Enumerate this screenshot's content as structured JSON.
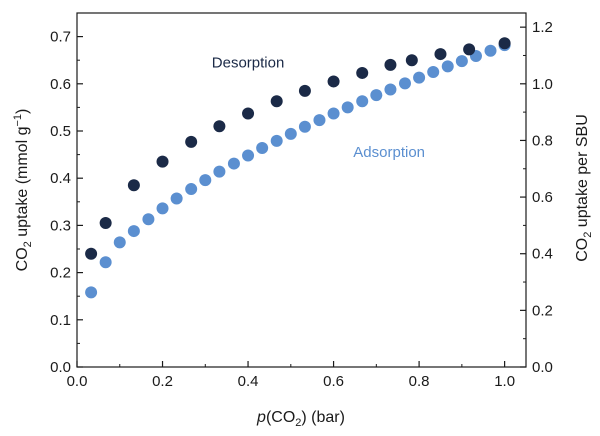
{
  "chart_data": {
    "type": "scatter",
    "xlabel": {
      "italic": "p",
      "pre": "(CO",
      "sub": "2",
      "post": ") (bar)"
    },
    "ylabel_left": {
      "pre": "CO",
      "sub": "2",
      "mid": " uptake (mmol g",
      "sup": "−1",
      "post": ")"
    },
    "ylabel_right": {
      "pre": "CO",
      "sub": "2",
      "post": " uptake per SBU"
    },
    "xlim": [
      0.0,
      1.05
    ],
    "ylim_left": [
      0.0,
      0.75
    ],
    "ylim_right": [
      0.0,
      1.25
    ],
    "x_ticks": [
      "0.0",
      "0.2",
      "0.4",
      "0.6",
      "0.8",
      "1.0"
    ],
    "y_left_ticks": [
      "0.0",
      "0.1",
      "0.2",
      "0.3",
      "0.4",
      "0.5",
      "0.6",
      "0.7"
    ],
    "y_right_ticks": [
      "0.0",
      "0.2",
      "0.4",
      "0.6",
      "0.8",
      "1.0",
      "1.2"
    ],
    "grid": false,
    "series": [
      {
        "name": "Desorption",
        "color": "#1b2a47",
        "x": [
          0.033,
          0.067,
          0.133,
          0.2,
          0.267,
          0.333,
          0.4,
          0.467,
          0.533,
          0.6,
          0.667,
          0.733,
          0.783,
          0.85,
          0.917,
          1.0
        ],
        "y": [
          0.24,
          0.305,
          0.385,
          0.435,
          0.477,
          0.51,
          0.537,
          0.563,
          0.585,
          0.605,
          0.623,
          0.64,
          0.65,
          0.663,
          0.673,
          0.686
        ]
      },
      {
        "name": "Adsorption",
        "color": "#5b8fd0",
        "x": [
          0.033,
          0.067,
          0.1,
          0.133,
          0.167,
          0.2,
          0.233,
          0.267,
          0.3,
          0.333,
          0.367,
          0.4,
          0.433,
          0.467,
          0.5,
          0.533,
          0.567,
          0.6,
          0.633,
          0.667,
          0.7,
          0.733,
          0.767,
          0.8,
          0.833,
          0.867,
          0.9,
          0.933,
          0.967,
          1.0
        ],
        "y": [
          0.158,
          0.222,
          0.264,
          0.288,
          0.313,
          0.336,
          0.357,
          0.377,
          0.396,
          0.414,
          0.431,
          0.448,
          0.464,
          0.479,
          0.494,
          0.509,
          0.523,
          0.537,
          0.55,
          0.563,
          0.576,
          0.588,
          0.601,
          0.613,
          0.625,
          0.637,
          0.648,
          0.659,
          0.67,
          0.682
        ]
      }
    ],
    "labels": [
      {
        "text": "Desorption",
        "series": "Desorption",
        "x": 0.4,
        "y": 0.645
      },
      {
        "text": "Adsorption",
        "series": "Adsorption",
        "x": 0.73,
        "y": 0.455
      }
    ]
  }
}
